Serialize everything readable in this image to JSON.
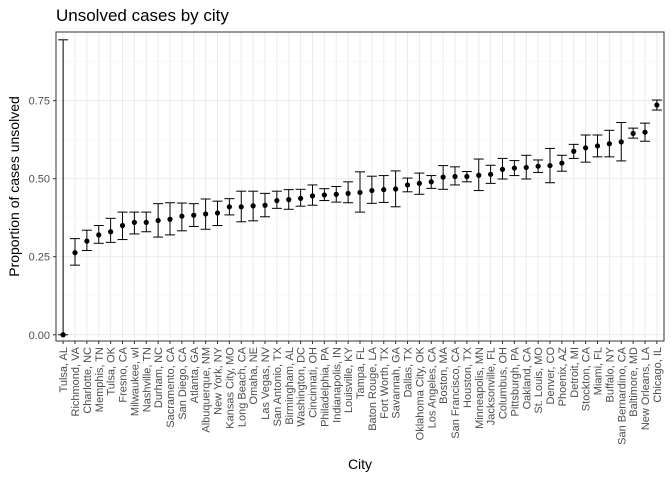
{
  "chart_data": {
    "type": "scatter",
    "title": "Unsolved cases by city",
    "xlabel": "City",
    "ylabel": "Proportion of cases unsolved",
    "ylim": [
      -0.02,
      0.97
    ],
    "yticks": [
      0.0,
      0.25,
      0.5,
      0.75
    ],
    "ytick_labels": [
      "0.00",
      "0.25",
      "0.50",
      "0.75"
    ],
    "grid": true,
    "x_tick_rotation": "vertical",
    "categories": [
      "Tulsa, AL",
      "Richmond, VA",
      "Charlotte, NC",
      "Memphis, TN",
      "Tulsa, OK",
      "Fresno, CA",
      "Milwaukee, wI",
      "Nashville, TN",
      "Durham, NC",
      "Sacramento, CA",
      "San Diego, CA",
      "Atlanta, GA",
      "Albuquerque, NM",
      "New York, NY",
      "Kansas City, MO",
      "Long Beach, CA",
      "Omaha, NE",
      "Las Vegas, NV",
      "San Antonio, TX",
      "Birmingham, AL",
      "Washington, DC",
      "Cincinnati, OH",
      "Philadelphia, PA",
      "Indianapolis, IN",
      "Louisville, KY",
      "Tampa, FL",
      "Baton Rouge, LA",
      "Fort Worth, TX",
      "Savannah, GA",
      "Dallas, TX",
      "Oklahoma City, OK",
      "Los Angeles, CA",
      "Boston, MA",
      "San Francisco, CA",
      "Houston, TX",
      "Minneapolis, MN",
      "Jacksonville, FL",
      "Columbus, OH",
      "Pittsburgh, PA",
      "Oakland, CA",
      "St. Louis, MO",
      "Denver, CO",
      "Phoenix, AZ",
      "Detroit, MI",
      "Stockton, CA",
      "Miami, FL",
      "Buffalo, NY",
      "San Bernardino, CA",
      "Baltimore, MD",
      "New Orleans, LA",
      "Chicago, IL"
    ],
    "series": [
      {
        "estimate": [
          0.0,
          0.263,
          0.3,
          0.32,
          0.33,
          0.35,
          0.36,
          0.36,
          0.366,
          0.37,
          0.38,
          0.383,
          0.387,
          0.39,
          0.41,
          0.41,
          0.413,
          0.415,
          0.43,
          0.433,
          0.437,
          0.445,
          0.448,
          0.45,
          0.453,
          0.456,
          0.462,
          0.465,
          0.467,
          0.48,
          0.485,
          0.49,
          0.505,
          0.507,
          0.507,
          0.511,
          0.514,
          0.53,
          0.534,
          0.536,
          0.54,
          0.542,
          0.55,
          0.588,
          0.599,
          0.605,
          0.612,
          0.618,
          0.645,
          0.649,
          0.736
        ],
        "conf_low": [
          0.0,
          0.223,
          0.27,
          0.293,
          0.296,
          0.305,
          0.323,
          0.33,
          0.313,
          0.32,
          0.333,
          0.347,
          0.338,
          0.35,
          0.384,
          0.362,
          0.365,
          0.378,
          0.405,
          0.402,
          0.412,
          0.415,
          0.43,
          0.425,
          0.423,
          0.393,
          0.421,
          0.424,
          0.41,
          0.458,
          0.45,
          0.469,
          0.466,
          0.48,
          0.49,
          0.462,
          0.485,
          0.499,
          0.51,
          0.499,
          0.52,
          0.487,
          0.524,
          0.565,
          0.553,
          0.57,
          0.57,
          0.557,
          0.63,
          0.62,
          0.72
        ],
        "conf_high": [
          0.945,
          0.308,
          0.335,
          0.35,
          0.373,
          0.393,
          0.393,
          0.393,
          0.42,
          0.423,
          0.422,
          0.42,
          0.435,
          0.428,
          0.436,
          0.46,
          0.46,
          0.453,
          0.46,
          0.465,
          0.466,
          0.48,
          0.468,
          0.475,
          0.49,
          0.522,
          0.508,
          0.51,
          0.525,
          0.502,
          0.518,
          0.51,
          0.542,
          0.538,
          0.523,
          0.563,
          0.543,
          0.565,
          0.558,
          0.575,
          0.56,
          0.597,
          0.575,
          0.61,
          0.64,
          0.64,
          0.655,
          0.68,
          0.662,
          0.678,
          0.752
        ]
      }
    ]
  }
}
